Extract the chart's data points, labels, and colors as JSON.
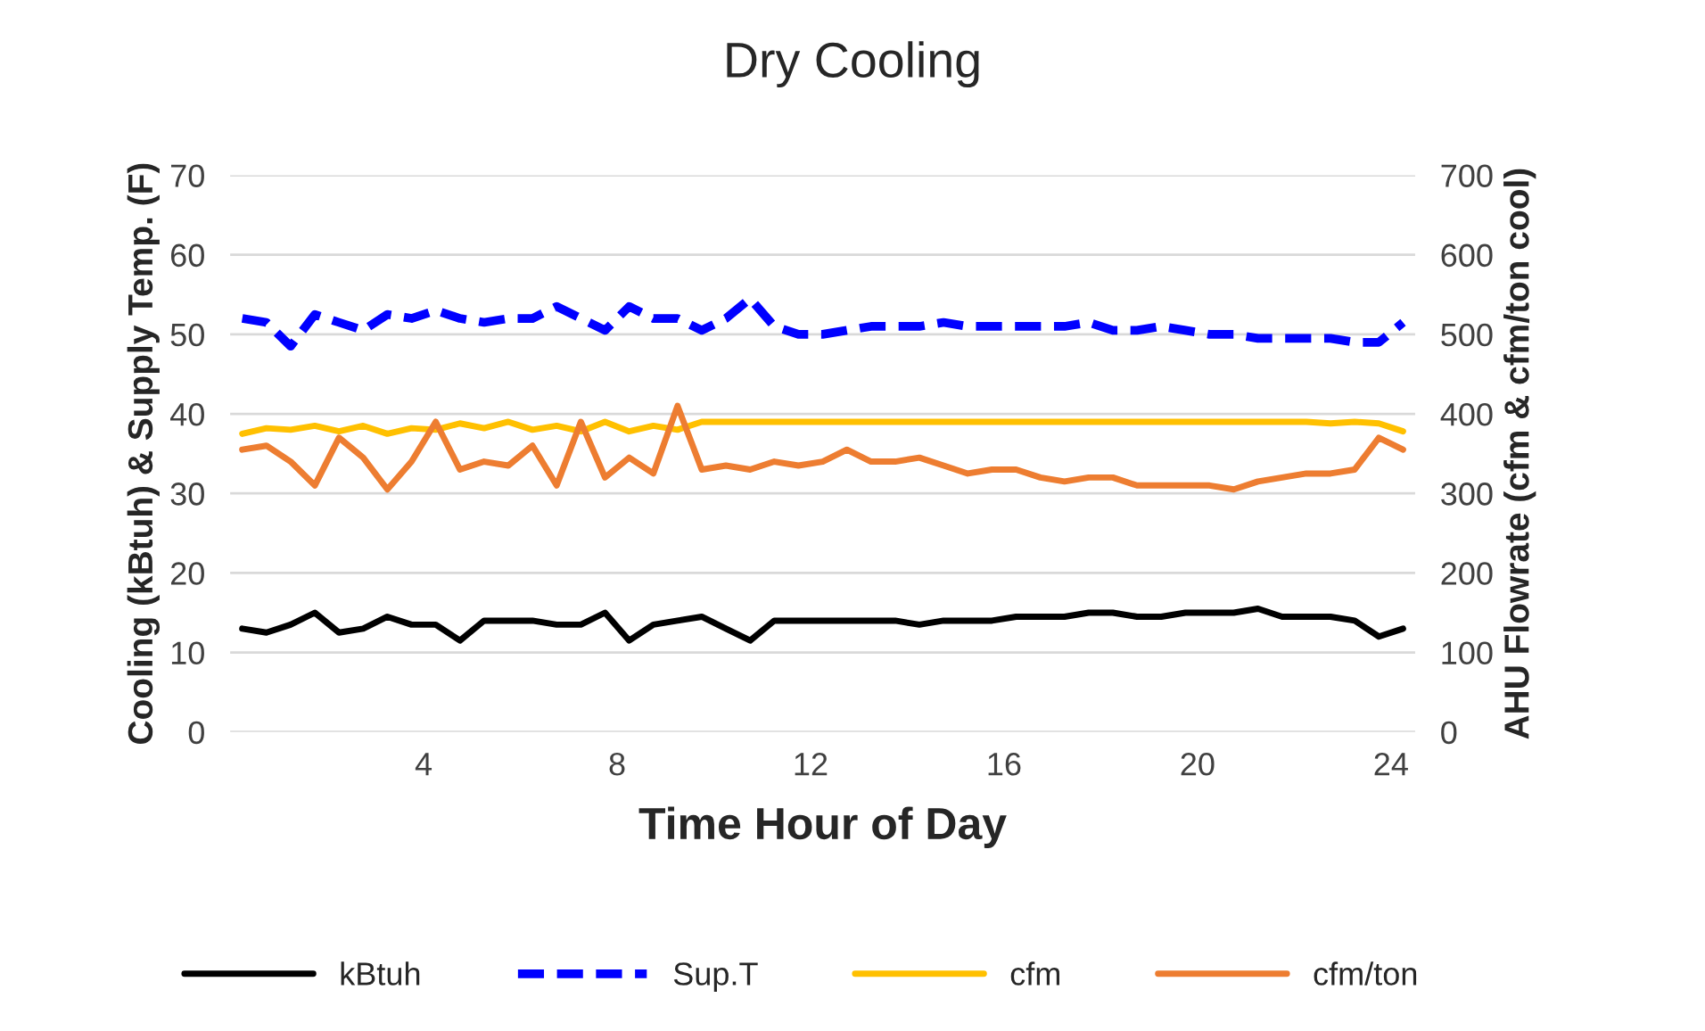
{
  "chart_data": {
    "type": "line",
    "title": "Dry Cooling",
    "xlabel": "Time Hour of Day",
    "ylabel": "Cooling (kBtuh) & Supply Temp. (F)",
    "y2label": "AHU Flowrate (cfm & cfm/ton cool)",
    "x": [
      0.25,
      0.75,
      1.25,
      1.75,
      2.25,
      2.75,
      3.25,
      3.75,
      4.25,
      4.75,
      5.25,
      5.75,
      6.25,
      6.75,
      7.25,
      7.75,
      8.25,
      8.75,
      9.25,
      9.75,
      10.25,
      10.75,
      11.25,
      11.75,
      12.25,
      12.75,
      13.25,
      13.75,
      14.25,
      14.75,
      15.25,
      15.75,
      16.25,
      16.75,
      17.25,
      17.75,
      18.25,
      18.75,
      19.25,
      19.75,
      20.25,
      20.75,
      21.25,
      21.75,
      22.25,
      22.75,
      23.25,
      23.75,
      24.25
    ],
    "series": [
      {
        "name": "kBtuh",
        "color": "#000000",
        "line_style": "solid",
        "values": [
          13,
          12.5,
          13.5,
          15,
          12.5,
          13,
          14.5,
          13.5,
          13.5,
          11.5,
          14,
          14,
          14,
          13.5,
          13.5,
          15,
          11.5,
          13.5,
          14,
          14.5,
          13,
          11.5,
          14,
          14,
          14,
          14,
          14,
          14,
          13.5,
          14,
          14,
          14,
          14.5,
          14.5,
          14.5,
          15,
          15,
          14.5,
          14.5,
          15,
          15,
          15,
          15.5,
          14.5,
          14.5,
          14.5,
          14,
          12,
          13
        ]
      },
      {
        "name": "Sup.T",
        "color": "#0000ff",
        "line_style": "dashed",
        "values": [
          52,
          51.5,
          48.5,
          52.5,
          51.5,
          50.5,
          52.5,
          52,
          53,
          52,
          51.5,
          52,
          52,
          53.5,
          52,
          50.5,
          53.5,
          52,
          52,
          50.5,
          52,
          54.5,
          51,
          50,
          50,
          50.5,
          51,
          51,
          51,
          51.5,
          51,
          51,
          51,
          51,
          51,
          51.5,
          50.5,
          50.5,
          51,
          50.5,
          50,
          50,
          49.5,
          49.5,
          49.5,
          49.5,
          49,
          49,
          51.5
        ]
      },
      {
        "name": "cfm",
        "color": "#ffc000",
        "line_style": "solid",
        "axis": "y2",
        "values": [
          375,
          382,
          380,
          385,
          378,
          385,
          375,
          382,
          380,
          388,
          382,
          390,
          380,
          385,
          378,
          390,
          378,
          385,
          380,
          390,
          390,
          390,
          390,
          390,
          390,
          390,
          390,
          390,
          390,
          390,
          390,
          390,
          390,
          390,
          390,
          390,
          390,
          390,
          390,
          390,
          390,
          390,
          390,
          390,
          390,
          388,
          390,
          388,
          378
        ]
      },
      {
        "name": "cfm/ton",
        "color": "#ed7d31",
        "line_style": "solid",
        "axis": "y2",
        "values": [
          355,
          360,
          340,
          310,
          370,
          345,
          305,
          340,
          390,
          330,
          340,
          335,
          360,
          310,
          390,
          320,
          345,
          325,
          410,
          330,
          335,
          330,
          340,
          335,
          340,
          355,
          340,
          340,
          345,
          335,
          325,
          330,
          330,
          320,
          315,
          320,
          320,
          310,
          310,
          310,
          310,
          305,
          315,
          320,
          325,
          325,
          330,
          370,
          355
        ]
      }
    ],
    "xlim": [
      0,
      24.5
    ],
    "xticks": [
      4,
      8,
      12,
      16,
      20,
      24
    ],
    "ylim": [
      0,
      70
    ],
    "yticks": [
      0,
      10,
      20,
      30,
      40,
      50,
      60,
      70
    ],
    "y2lim": [
      0,
      700
    ],
    "y2ticks": [
      0,
      100,
      200,
      300,
      400,
      500,
      600,
      700
    ],
    "grid": "y",
    "legend": "bottom",
    "marker": "none"
  }
}
